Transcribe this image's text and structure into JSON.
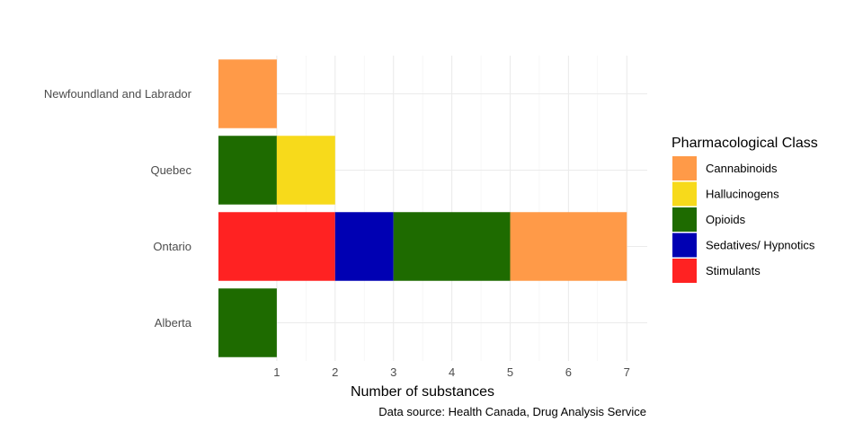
{
  "chart_data": {
    "type": "bar",
    "orientation": "horizontal",
    "stacked": true,
    "categories": [
      "Alberta",
      "Ontario",
      "Quebec",
      "Newfoundland and Labrador"
    ],
    "series": [
      {
        "name": "Stimulants",
        "color": "#ff2222",
        "values": [
          0,
          2,
          0,
          0
        ]
      },
      {
        "name": "Sedatives/ Hypnotics",
        "color": "#0000b3",
        "values": [
          0,
          1,
          0,
          0
        ]
      },
      {
        "name": "Opioids",
        "color": "#1e6b00",
        "values": [
          1,
          2,
          1,
          0
        ]
      },
      {
        "name": "Hallucinogens",
        "color": "#f7da1b",
        "values": [
          0,
          0,
          1,
          0
        ]
      },
      {
        "name": "Cannabinoids",
        "color": "#ff9a48",
        "values": [
          0,
          2,
          0,
          1
        ]
      }
    ],
    "legend_order": [
      "Cannabinoids",
      "Hallucinogens",
      "Opioids",
      "Sedatives/ Hypnotics",
      "Stimulants"
    ],
    "xlabel": "Number of substances",
    "ylabel": "",
    "xticks": [
      1,
      2,
      3,
      4,
      5,
      6,
      7
    ],
    "xlim": [
      0,
      7.35
    ],
    "grid": true,
    "legend_title": "Pharmacological Class",
    "legend_position": "right",
    "caption": "Data source: Health Canada, Drug Analysis Service"
  }
}
